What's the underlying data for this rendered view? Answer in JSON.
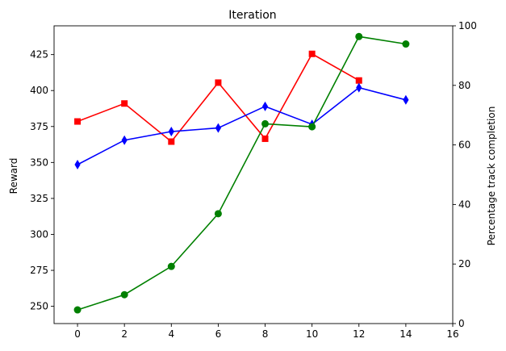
{
  "chart_data": {
    "type": "line",
    "title": "Iteration",
    "xlabel": "",
    "ylabel_left": "Reward",
    "ylabel_right": "Percentage track completion",
    "xlim": [
      -1,
      16
    ],
    "ylim_left": [
      238,
      445
    ],
    "ylim_right": [
      0,
      100
    ],
    "xticks": [
      0,
      2,
      4,
      6,
      8,
      10,
      12,
      14,
      16
    ],
    "yticks_left": [
      250,
      275,
      300,
      325,
      350,
      375,
      400,
      425
    ],
    "yticks_right": [
      0,
      20,
      40,
      60,
      80,
      100
    ],
    "grid": false,
    "legend": "none",
    "series": [
      {
        "axis": "left",
        "color": "#ff0000",
        "marker": "square",
        "x": [
          0,
          2,
          4,
          6,
          8,
          10,
          12
        ],
        "y": [
          378.5,
          391,
          364.5,
          405.5,
          366.5,
          425.5,
          407
        ]
      },
      {
        "axis": "left",
        "color": "#0000ff",
        "marker": "diamond",
        "x": [
          0,
          2,
          4,
          6,
          8,
          10,
          12,
          14
        ],
        "y": [
          348.5,
          365.5,
          371.5,
          374,
          389,
          376.5,
          402,
          393.5
        ]
      },
      {
        "axis": "right",
        "color": "#008000",
        "marker": "circle",
        "x": [
          0,
          2,
          4,
          6,
          8,
          10,
          12,
          14
        ],
        "y": [
          4.6,
          9.7,
          19.2,
          36.9,
          67.1,
          66.1,
          96.4,
          93.9
        ]
      }
    ]
  }
}
